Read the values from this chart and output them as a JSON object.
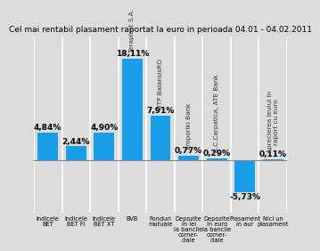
{
  "title": "Cel mai rentabil plasament raportat la euro in perioada 04.01 - 04.02.2011",
  "values": [
    4.84,
    2.44,
    4.9,
    18.11,
    7.91,
    0.77,
    0.29,
    -5.73,
    0.11
  ],
  "bar_labels": [
    "4,84%",
    "2,44%",
    "4,90%",
    "18,11%",
    "7,91%",
    "0,77%",
    "0,29%",
    "-5,73%",
    "0,11%"
  ],
  "rotated_labels": [
    "",
    "",
    "",
    "Teraplast S.A.",
    "OTP BalansisRO",
    "Emporiki Bank",
    "B.C.Carpatica, ATE Bank",
    "",
    "Aprecierea leului in\nraport cu euro"
  ],
  "xlabels": [
    "Indicele\nBET",
    "Indicele\nBET FI",
    "Indicele\nBET XT",
    "BVB",
    "Fonduri\nmutuale",
    "Depozite\nin lei\nla bancile\ncomer-\nciale",
    "Depozite\nin euro\nla bancile\ncomer-\nciale",
    "Plasament\nin aur",
    "Nici un\nplasament"
  ],
  "bar_color": "#1B9EE8",
  "bg_color": "#DCDCDC",
  "plot_bg_color": "#DCDCDC",
  "divider_color": "#FFFFFF",
  "zero_line_color": "#888888",
  "title_fontsize": 6.5,
  "value_fontsize": 6.5,
  "rotated_fontsize": 5.2,
  "xlabel_fontsize": 4.8,
  "ylim_min": -9.5,
  "ylim_max": 22.0
}
